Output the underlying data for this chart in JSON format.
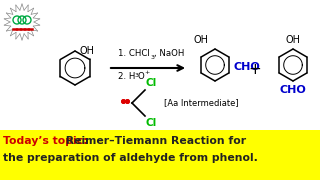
{
  "bg_color": "#ffffff",
  "bottom_bar_color": "#ffff00",
  "today_topic_color": "#cc0000",
  "topic_text_color": "#222222",
  "today_label": "Today’s topic:",
  "topic_text_line1": " Reimer–Tiemann Reaction for",
  "topic_text_line2": "the preparation of aldehyde from phenol.",
  "aa_intermediate": "[Aa Intermediate]",
  "cho_color": "#0000cc",
  "cl_color": "#00bb00",
  "dot_color": "#dd0000",
  "arrow_color": "#000000",
  "plus_color": "#000000",
  "oh_color": "#000000",
  "ring_color": "#000000",
  "figsize": [
    3.2,
    1.8
  ],
  "dpi": 100
}
